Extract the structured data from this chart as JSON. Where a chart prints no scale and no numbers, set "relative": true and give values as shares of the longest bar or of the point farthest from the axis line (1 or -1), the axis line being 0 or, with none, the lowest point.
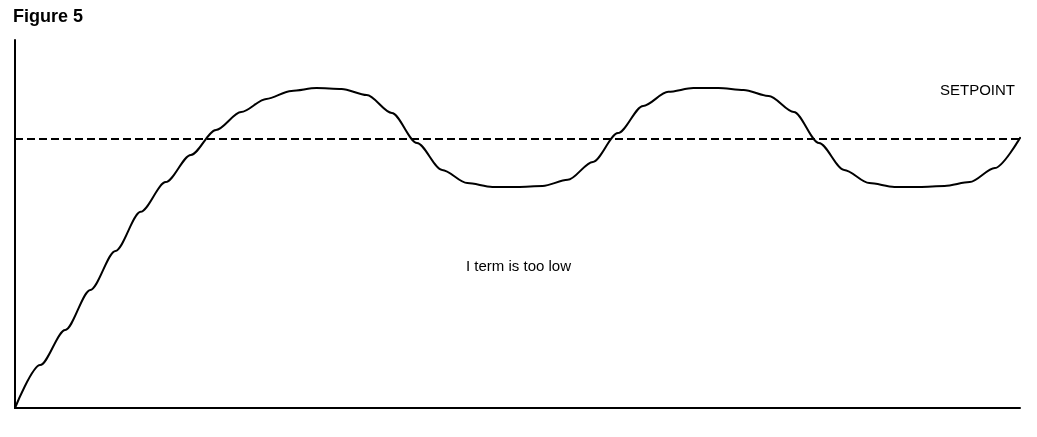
{
  "chart_data": {
    "type": "line",
    "title": "Figure 5",
    "relative": true,
    "grid": false,
    "categories": [
      null,
      null,
      null,
      null,
      null,
      null,
      null,
      null,
      null,
      null,
      null,
      null,
      null,
      null,
      null,
      null,
      null,
      null,
      null,
      null,
      null,
      null,
      null,
      null,
      null,
      null,
      null,
      null,
      null,
      null,
      null,
      null,
      null,
      null,
      null,
      null,
      null,
      null,
      null,
      null,
      null
    ],
    "series": [
      {
        "color": "#000000",
        "line_style": "solid",
        "values": [
          0,
          0.134,
          0.244,
          0.369,
          0.491,
          0.613,
          0.706,
          0.791,
          0.869,
          0.925,
          0.966,
          0.991,
          1,
          0.997,
          0.978,
          0.922,
          0.828,
          0.744,
          0.703,
          0.691,
          0.691,
          0.694,
          0.713,
          0.769,
          0.859,
          0.944,
          0.988,
          1,
          1,
          0.994,
          0.975,
          0.925,
          0.828,
          0.744,
          0.703,
          0.691,
          0.691,
          0.694,
          0.706,
          0.75,
          0.844
        ]
      }
    ],
    "ref_lines": [
      {
        "axis": "y",
        "value": 0.844,
        "label": "SETPOINT",
        "color": "#000000",
        "line_style": "dashed"
      }
    ],
    "annotations": [
      "I term is too low"
    ]
  }
}
